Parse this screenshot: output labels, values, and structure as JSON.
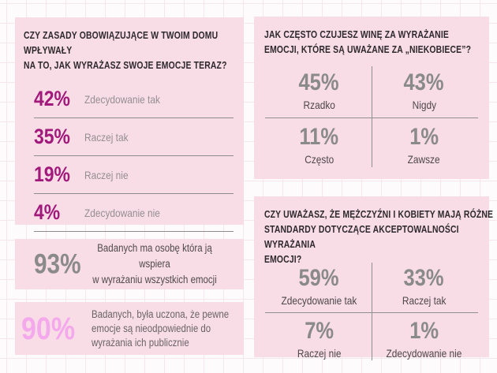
{
  "colors": {
    "page_bg": "#fdfbfc",
    "grid_line": "#f7e6ec",
    "panel_bg": "#f8dce6",
    "heading_text": "#2d292c",
    "accent_magenta": "#a1197b",
    "stat_gray": "#8a8a8a",
    "stat_light_pink": "#f3a9ec",
    "label_light_gray": "#948f93",
    "label_dark_gray": "#4d484b",
    "divider_gray": "#8d8d8d"
  },
  "panel_home_rules": {
    "heading": "CZY ZASADY OBOWIĄZUJĄCE W TWOIM DOMU WPŁYWAŁY\nNA TO, JAK WYRAŻASZ SWOJE EMOCJE TERAZ?",
    "rows": [
      {
        "pct": "42%",
        "label": "Zdecydowanie tak"
      },
      {
        "pct": "35%",
        "label": "Raczej tak"
      },
      {
        "pct": "19%",
        "label": "Raczej nie"
      },
      {
        "pct": "4%",
        "label": "Zdecydowanie nie"
      }
    ]
  },
  "panel_support": {
    "pct": "93%",
    "text": "Badanych ma osobę która ją wspiera\nw wyrażaniu wszystkich emocji"
  },
  "panel_taught": {
    "pct": "90%",
    "text": "Badanych, była uczona, że pewne\nemocje są nieodpowiednie do\nwyrażania ich publicznie"
  },
  "panel_guilt": {
    "heading": "JAK CZĘSTO CZUJESZ WINĘ ZA WYRAŻANIE\nEMOCJI, KTÓRE SĄ UWAŻANE ZA „NIEKOBIECE”?",
    "cells": [
      {
        "pct": "45%",
        "label": "Rzadko"
      },
      {
        "pct": "43%",
        "label": "Nigdy"
      },
      {
        "pct": "11%",
        "label": "Często"
      },
      {
        "pct": "1%",
        "label": "Zawsze"
      }
    ]
  },
  "panel_standards": {
    "heading": "CZY UWAŻASZ, ŻE MĘŻCZYŹNI I KOBIETY MAJĄ RÓŻNE\nSTANDARDY DOTYCZĄCE AKCEPTOWALNOŚCI WYRAŻANIA\nEMOCJI?",
    "cells": [
      {
        "pct": "59%",
        "label": "Zdecydowanie tak"
      },
      {
        "pct": "33%",
        "label": "Raczej tak"
      },
      {
        "pct": "7%",
        "label": "Raczej nie"
      },
      {
        "pct": "1%",
        "label": "Zdecydowanie nie"
      }
    ]
  },
  "chart_data": [
    {
      "type": "table",
      "title": "CZY ZASADY OBOWIĄZUJĄCE W TWOIM DOMU WPŁYWAŁY NA TO, JAK WYRAŻASZ SWOJE EMOCJE TERAZ?",
      "categories": [
        "Zdecydowanie tak",
        "Raczej tak",
        "Raczej nie",
        "Zdecydowanie nie"
      ],
      "values": [
        42,
        35,
        19,
        4
      ],
      "unit": "%"
    },
    {
      "type": "table",
      "title": "JAK CZĘSTO CZUJESZ WINĘ ZA WYRAŻANIE EMOCJI, KTÓRE SĄ UWAŻANE ZA „NIEKOBIECE”?",
      "categories": [
        "Rzadko",
        "Nigdy",
        "Często",
        "Zawsze"
      ],
      "values": [
        45,
        43,
        11,
        1
      ],
      "unit": "%"
    },
    {
      "type": "table",
      "title": "CZY UWAŻASZ, ŻE MĘŻCZYŹNI I KOBIETY MAJĄ RÓŻNE STANDARDY DOTYCZĄCE AKCEPTOWALNOŚCI WYRAŻANIA EMOCJI?",
      "categories": [
        "Zdecydowanie tak",
        "Raczej tak",
        "Raczej nie",
        "Zdecydowanie nie"
      ],
      "values": [
        59,
        33,
        7,
        1
      ],
      "unit": "%"
    },
    {
      "type": "stat",
      "value": 93,
      "unit": "%",
      "label": "Badanych ma osobę która ją wspiera w wyrażaniu wszystkich emocji"
    },
    {
      "type": "stat",
      "value": 90,
      "unit": "%",
      "label": "Badanych, była uczona, że pewne emocje są nieodpowiednie do wyrażania ich publicznie"
    }
  ]
}
